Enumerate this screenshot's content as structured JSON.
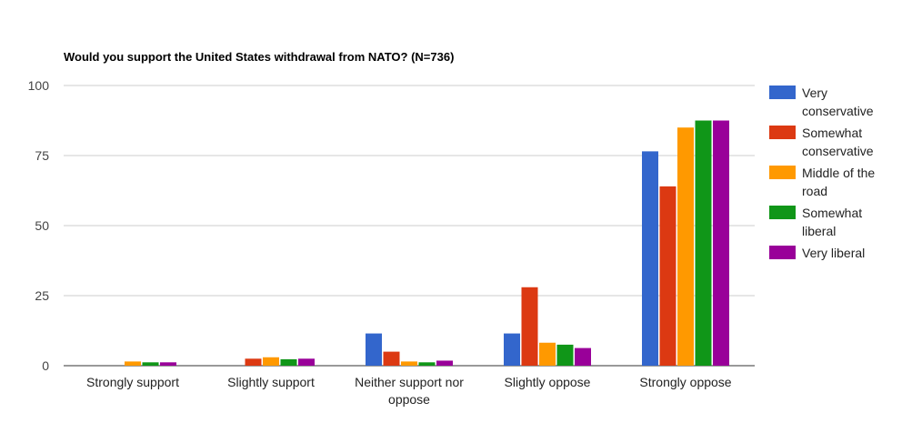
{
  "chart_data": {
    "type": "bar",
    "title": "Would you support the United States withdrawal from NATO? (N=736)",
    "xlabel": "",
    "ylabel": "",
    "ylim": [
      0,
      100
    ],
    "yticks": [
      0,
      25,
      50,
      75,
      100
    ],
    "grid": true,
    "legend": "right",
    "categories": [
      [
        "Strongly support"
      ],
      [
        "Slightly support"
      ],
      [
        "Neither support nor",
        "oppose"
      ],
      [
        "Slightly oppose"
      ],
      [
        "Strongly oppose"
      ]
    ],
    "series": [
      {
        "name": [
          "Very",
          "conservative"
        ],
        "color": "#3366cc",
        "values": [
          0,
          0,
          11.5,
          11.5,
          76.5
        ]
      },
      {
        "name": [
          "Somewhat",
          "conservative"
        ],
        "color": "#dc3912",
        "values": [
          0,
          2.5,
          5,
          28,
          64
        ]
      },
      {
        "name": [
          "Middle of the",
          "road"
        ],
        "color": "#ff9900",
        "values": [
          1.5,
          3,
          1.5,
          8.2,
          85
        ]
      },
      {
        "name": [
          "Somewhat",
          "liberal"
        ],
        "color": "#109618",
        "values": [
          1.2,
          2.3,
          1.2,
          7.5,
          87.5
        ]
      },
      {
        "name": [
          "Very liberal"
        ],
        "color": "#990099",
        "values": [
          1.2,
          2.5,
          1.8,
          6.3,
          87.5
        ]
      }
    ]
  }
}
